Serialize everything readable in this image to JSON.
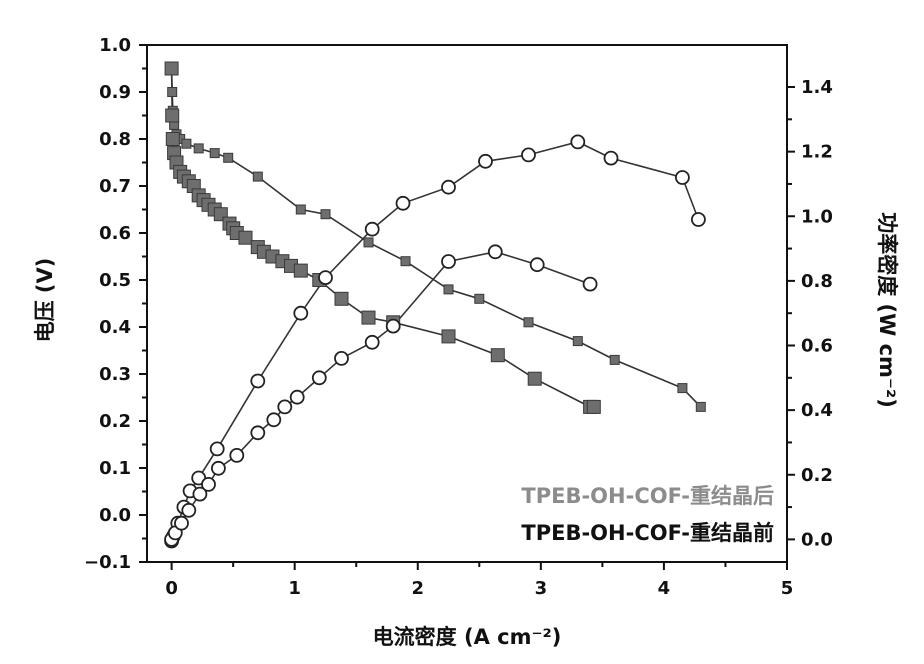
{
  "chart_data": {
    "type": "line",
    "xlabel": "电流密度 (A cm⁻²)",
    "ylabel_left": "电压 (V)",
    "ylabel_right": "功率密度 (W cm⁻²)",
    "xlim": [
      -0.2,
      5
    ],
    "ylim_left": [
      -0.1,
      1.0
    ],
    "ylim_right": [
      -0.07,
      1.53
    ],
    "x_ticks": [
      "0",
      "1",
      "2",
      "3",
      "4",
      "5"
    ],
    "y_left_ticks": [
      "-0.1",
      "0.0",
      "0.1",
      "0.2",
      "0.3",
      "0.4",
      "0.5",
      "0.6",
      "0.7",
      "0.8",
      "0.9",
      "1.0"
    ],
    "y_right_ticks": [
      "0.0",
      "0.2",
      "0.4",
      "0.6",
      "0.8",
      "1.0",
      "1.2",
      "1.4"
    ],
    "legend": [
      {
        "label": "TPEB-OH-COF-重结晶后",
        "color": "#8c8c8c"
      },
      {
        "label": "TPEB-OH-COF-重结晶前",
        "color": "#111111"
      }
    ],
    "series": [
      {
        "axis": "left",
        "marker": "square",
        "size": 9,
        "points": [
          [
            0,
            0.95
          ],
          [
            0.005,
            0.9
          ],
          [
            0.01,
            0.86
          ],
          [
            0.02,
            0.83
          ],
          [
            0.04,
            0.81
          ],
          [
            0.07,
            0.8
          ],
          [
            0.12,
            0.79
          ],
          [
            0.22,
            0.78
          ],
          [
            0.35,
            0.77
          ],
          [
            0.46,
            0.76
          ],
          [
            0.7,
            0.72
          ],
          [
            1.05,
            0.65
          ],
          [
            1.25,
            0.64
          ],
          [
            1.6,
            0.58
          ],
          [
            1.9,
            0.54
          ],
          [
            2.25,
            0.48
          ],
          [
            2.5,
            0.46
          ],
          [
            2.9,
            0.41
          ],
          [
            3.3,
            0.37
          ],
          [
            3.6,
            0.33
          ],
          [
            4.15,
            0.27
          ],
          [
            4.3,
            0.23
          ]
        ]
      },
      {
        "axis": "left",
        "marker": "square",
        "size": 13,
        "points": [
          [
            0,
            0.95
          ],
          [
            0.005,
            0.85
          ],
          [
            0.01,
            0.8
          ],
          [
            0.02,
            0.77
          ],
          [
            0.04,
            0.75
          ],
          [
            0.07,
            0.73
          ],
          [
            0.1,
            0.72
          ],
          [
            0.14,
            0.71
          ],
          [
            0.18,
            0.7
          ],
          [
            0.22,
            0.68
          ],
          [
            0.26,
            0.67
          ],
          [
            0.3,
            0.66
          ],
          [
            0.35,
            0.65
          ],
          [
            0.4,
            0.64
          ],
          [
            0.47,
            0.62
          ],
          [
            0.5,
            0.61
          ],
          [
            0.53,
            0.6
          ],
          [
            0.6,
            0.59
          ],
          [
            0.7,
            0.57
          ],
          [
            0.75,
            0.56
          ],
          [
            0.82,
            0.55
          ],
          [
            0.9,
            0.54
          ],
          [
            0.97,
            0.53
          ],
          [
            1.05,
            0.52
          ],
          [
            1.2,
            0.5
          ],
          [
            1.38,
            0.46
          ],
          [
            1.6,
            0.42
          ],
          [
            1.8,
            0.41
          ],
          [
            2.25,
            0.38
          ],
          [
            2.65,
            0.34
          ],
          [
            2.95,
            0.29
          ],
          [
            3.4,
            0.23
          ],
          [
            3.43,
            0.23
          ]
        ]
      },
      {
        "axis": "right",
        "marker": "circle",
        "size": 13,
        "points": [
          [
            0,
            -0.005
          ],
          [
            0.015,
            0.01
          ],
          [
            0.05,
            0.05
          ],
          [
            0.1,
            0.1
          ],
          [
            0.15,
            0.15
          ],
          [
            0.22,
            0.19
          ],
          [
            0.37,
            0.28
          ],
          [
            0.7,
            0.49
          ],
          [
            1.05,
            0.7
          ],
          [
            1.25,
            0.81
          ],
          [
            1.63,
            0.96
          ],
          [
            1.88,
            1.04
          ],
          [
            2.25,
            1.09
          ],
          [
            2.55,
            1.17
          ],
          [
            2.9,
            1.19
          ],
          [
            3.3,
            1.23
          ],
          [
            3.57,
            1.18
          ],
          [
            4.15,
            1.12
          ],
          [
            4.28,
            0.99
          ]
        ]
      },
      {
        "axis": "right",
        "marker": "circle",
        "size": 13,
        "points": [
          [
            0,
            0.0
          ],
          [
            0.03,
            0.02
          ],
          [
            0.08,
            0.05
          ],
          [
            0.14,
            0.09
          ],
          [
            0.23,
            0.14
          ],
          [
            0.3,
            0.17
          ],
          [
            0.38,
            0.22
          ],
          [
            0.53,
            0.26
          ],
          [
            0.7,
            0.33
          ],
          [
            0.83,
            0.37
          ],
          [
            0.92,
            0.41
          ],
          [
            1.02,
            0.44
          ],
          [
            1.2,
            0.5
          ],
          [
            1.38,
            0.56
          ],
          [
            1.63,
            0.61
          ],
          [
            1.8,
            0.66
          ],
          [
            2.25,
            0.86
          ],
          [
            2.63,
            0.89
          ],
          [
            2.97,
            0.85
          ],
          [
            3.4,
            0.79
          ]
        ]
      }
    ]
  }
}
